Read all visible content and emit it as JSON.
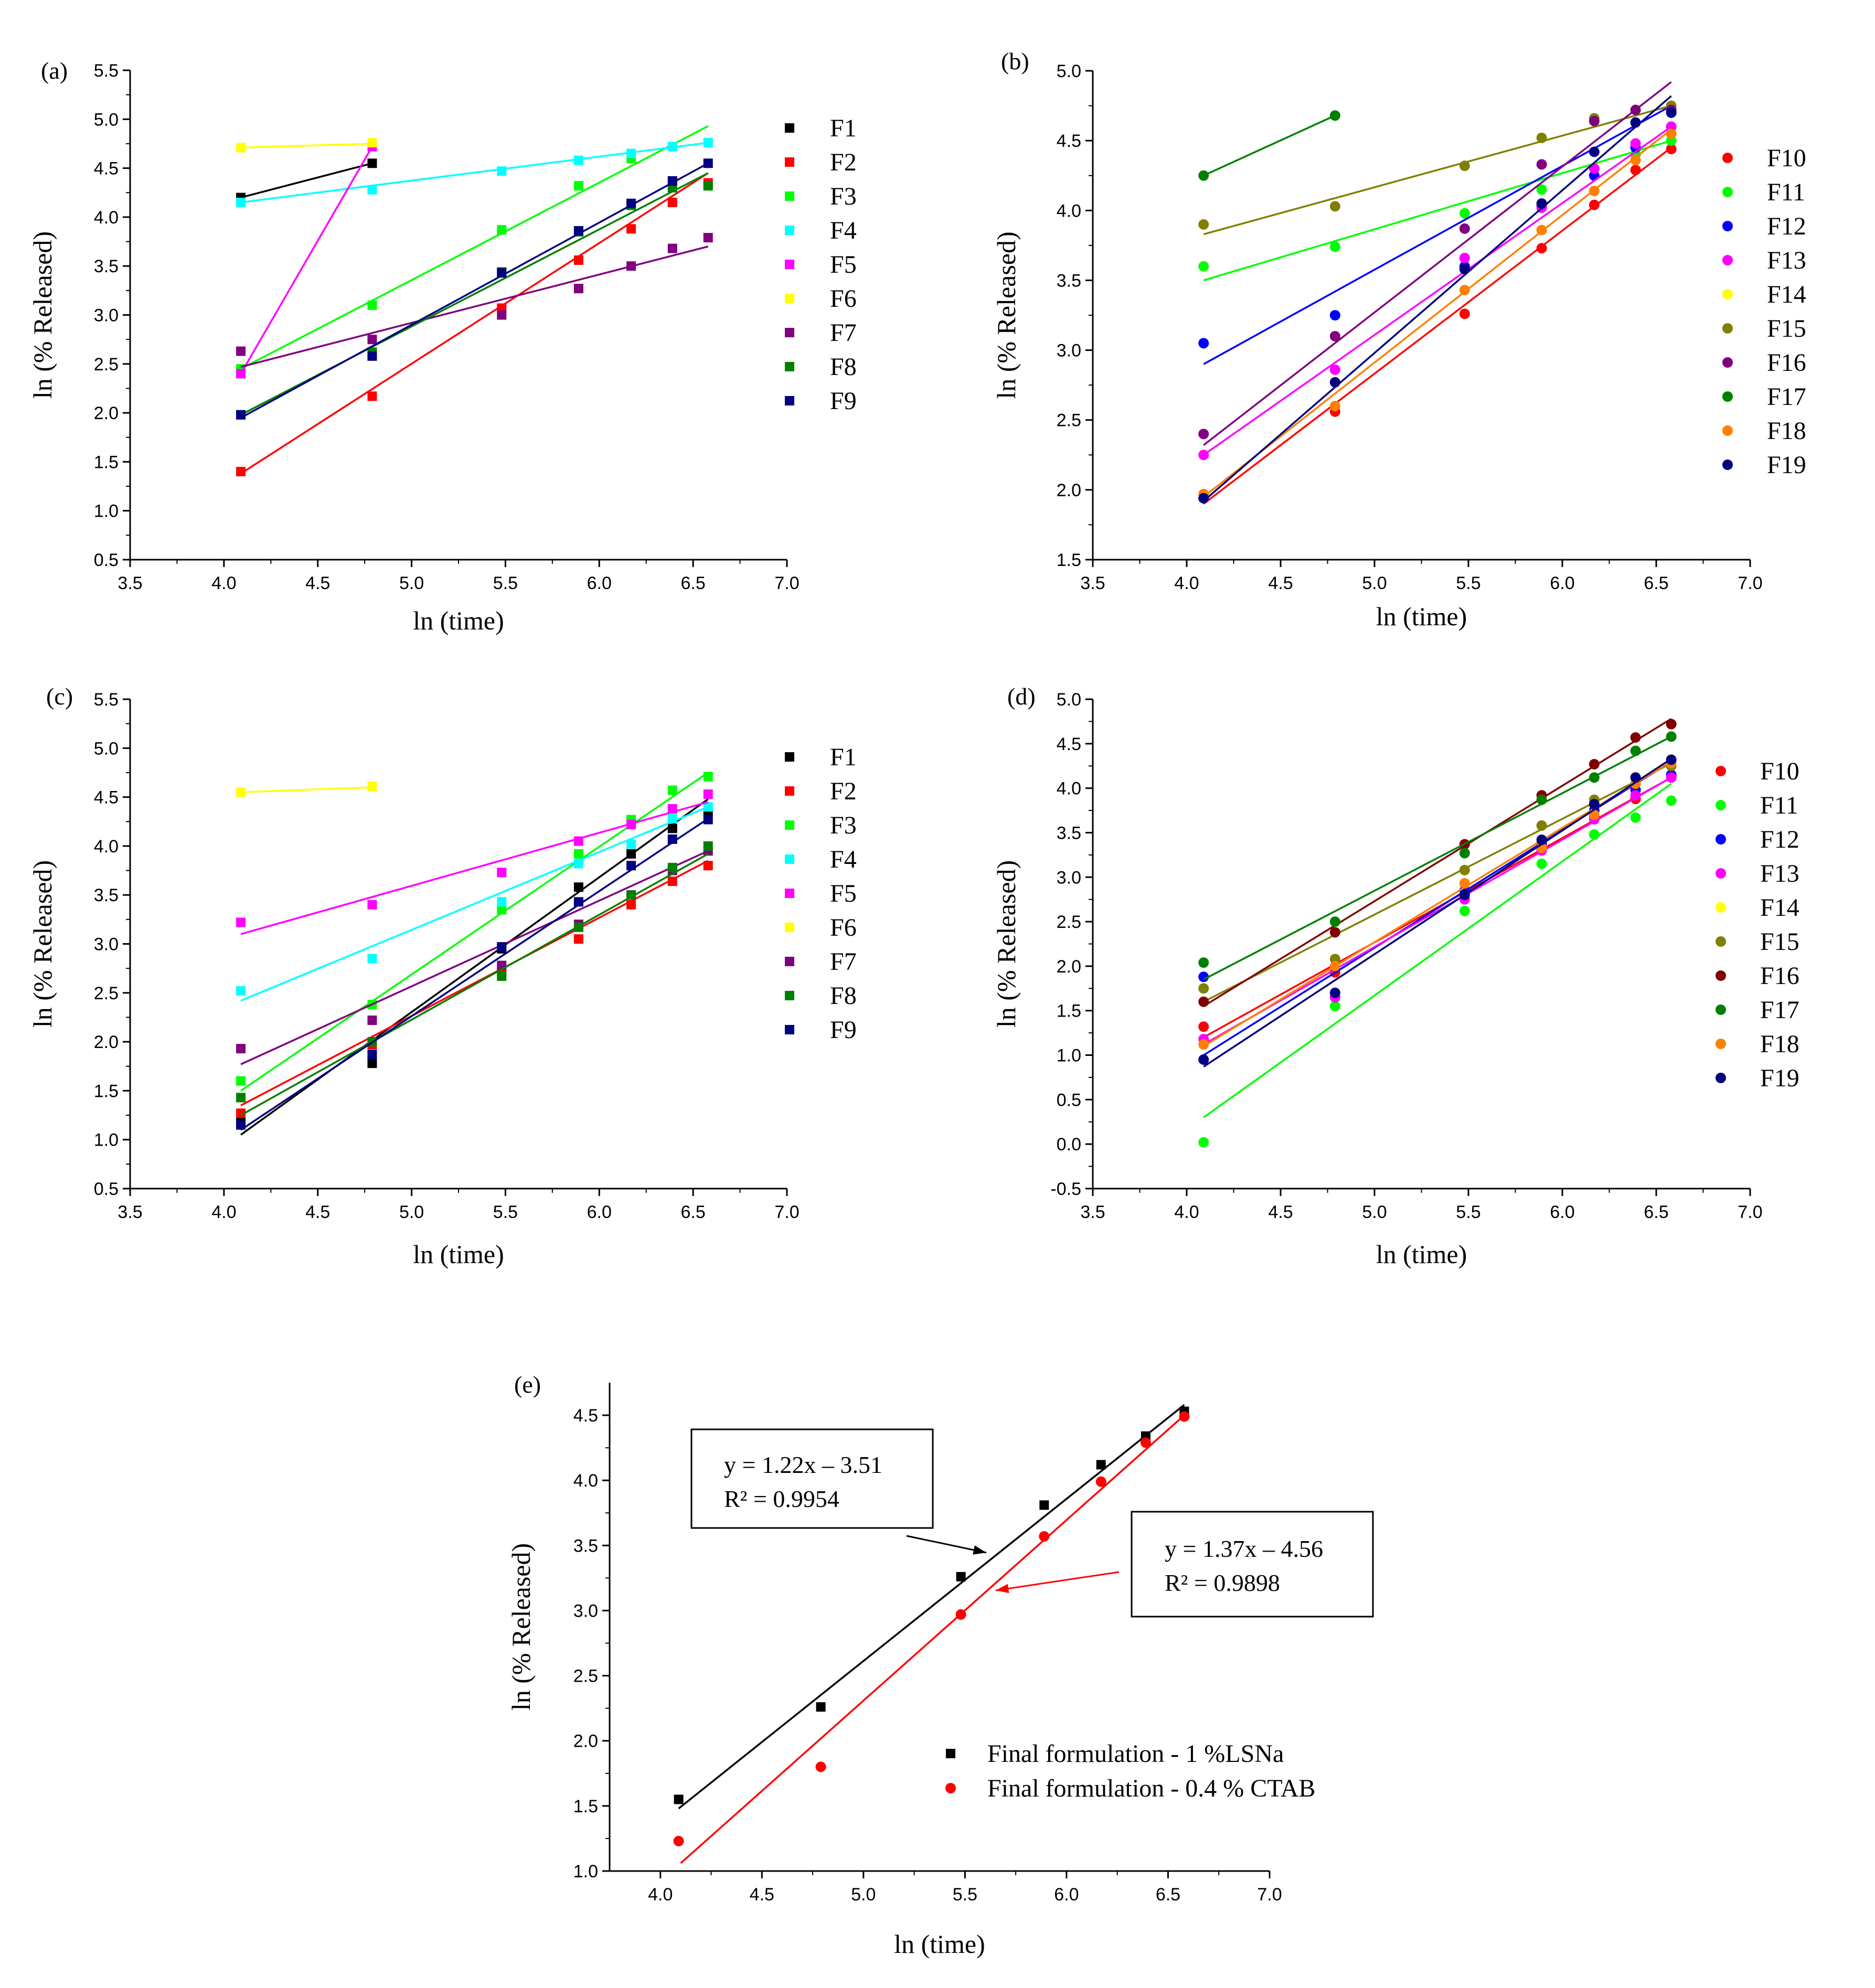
{
  "chart_data": [
    {
      "panel": "(a)",
      "type": "scatter",
      "marker": "square",
      "xlabel": "ln (time)",
      "ylabel": "ln (% Released)",
      "xlim": [
        3.5,
        7.0
      ],
      "ylim": [
        0.5,
        5.5
      ],
      "xticks": [
        "3.5",
        "4.0",
        "4.5",
        "5.0",
        "5.5",
        "6.0",
        "6.5",
        "7.0"
      ],
      "yticks": [
        "0.5",
        "1.0",
        "1.5",
        "2.0",
        "2.5",
        "3.0",
        "3.5",
        "4.0",
        "4.5",
        "5.0",
        "5.5"
      ],
      "legend_position": "right",
      "x": [
        4.09,
        4.79,
        5.48,
        5.89,
        6.17,
        6.39,
        6.58
      ],
      "series": [
        {
          "name": "F1",
          "color": "#000000",
          "values": [
            4.2,
            4.55
          ],
          "fit": [
            [
              4.09,
              4.2
            ],
            [
              4.79,
              4.55
            ]
          ]
        },
        {
          "name": "F2",
          "color": "#ff0000",
          "values": [
            1.4,
            2.17,
            3.07,
            3.56,
            3.88,
            4.15,
            4.35
          ],
          "fit": [
            [
              4.09,
              1.38
            ],
            [
              6.58,
              4.45
            ]
          ]
        },
        {
          "name": "F3",
          "color": "#00ff00",
          "values": [
            2.45,
            3.1,
            3.87,
            4.32,
            4.6,
            4.72,
            4.32
          ],
          "fit": [
            [
              4.09,
              2.45
            ],
            [
              6.58,
              4.93
            ]
          ]
        },
        {
          "name": "F4",
          "color": "#00ffff",
          "values": [
            4.15,
            4.28,
            4.47,
            4.58,
            4.65,
            4.72,
            4.76
          ],
          "fit": [
            [
              4.09,
              4.15
            ],
            [
              6.58,
              4.76
            ]
          ]
        },
        {
          "name": "F5",
          "color": "#ff00ff",
          "values": [
            2.4,
            4.72
          ],
          "fit": [
            [
              4.09,
              2.4
            ],
            [
              4.79,
              4.72
            ]
          ]
        },
        {
          "name": "F6",
          "color": "#ffff00",
          "values": [
            4.71,
            4.76
          ],
          "fit": [
            [
              4.09,
              4.71
            ],
            [
              4.79,
              4.75
            ]
          ]
        },
        {
          "name": "F7",
          "color": "#800080",
          "values": [
            2.63,
            2.75,
            3.0,
            3.27,
            3.5,
            3.68,
            3.79
          ],
          "fit": [
            [
              4.09,
              2.47
            ],
            [
              6.58,
              3.7
            ]
          ]
        },
        {
          "name": "F8",
          "color": "#008000",
          "values": [
            1.98,
            2.62,
            3.44,
            3.85,
            4.12,
            4.3,
            4.32
          ],
          "fit": [
            [
              4.09,
              1.98
            ],
            [
              6.58,
              4.45
            ]
          ]
        },
        {
          "name": "F9",
          "color": "#000080",
          "values": [
            1.98,
            2.58,
            3.43,
            3.86,
            4.14,
            4.37,
            4.55
          ],
          "fit": [
            [
              4.09,
              1.95
            ],
            [
              6.58,
              4.55
            ]
          ]
        }
      ]
    },
    {
      "panel": "(b)",
      "type": "scatter",
      "marker": "circle",
      "xlabel": "ln (time)",
      "ylabel": "ln (% Released)",
      "xlim": [
        3.5,
        7.0
      ],
      "ylim": [
        1.5,
        5.0
      ],
      "xticks": [
        "3.5",
        "4.0",
        "4.5",
        "5.0",
        "5.5",
        "6.0",
        "6.5",
        "7.0"
      ],
      "yticks": [
        "1.5",
        "2.0",
        "2.5",
        "3.0",
        "3.5",
        "4.0",
        "4.5",
        "5.0"
      ],
      "legend_position": "right",
      "x": [
        4.09,
        4.79,
        5.48,
        5.89,
        6.17,
        6.39,
        6.58
      ],
      "series": [
        {
          "name": "F10",
          "color": "#ff0000",
          "values": [
            1.94,
            2.56,
            3.26,
            3.73,
            4.04,
            4.29,
            4.44
          ],
          "fit": [
            [
              4.09,
              1.9
            ],
            [
              6.58,
              4.45
            ]
          ]
        },
        {
          "name": "F11",
          "color": "#00ff00",
          "values": [
            3.6,
            3.74,
            3.98,
            4.15,
            4.3,
            4.4,
            4.5
          ],
          "fit": [
            [
              4.09,
              3.5
            ],
            [
              6.58,
              4.5
            ]
          ]
        },
        {
          "name": "F12",
          "color": "#0000ff",
          "values": [
            3.05,
            3.25,
            3.6,
            4.03,
            4.25,
            4.45,
            4.6
          ],
          "fit": [
            [
              4.09,
              2.9
            ],
            [
              6.58,
              4.75
            ]
          ]
        },
        {
          "name": "F13",
          "color": "#ff00ff",
          "values": [
            2.25,
            2.86,
            3.66,
            4.02,
            4.3,
            4.48,
            4.6
          ],
          "fit": [
            [
              4.09,
              2.25
            ],
            [
              6.58,
              4.6
            ]
          ]
        },
        {
          "name": "F14",
          "color": "#ffff00",
          "values": [],
          "fit": null
        },
        {
          "name": "F15",
          "color": "#808000",
          "values": [
            3.9,
            4.03,
            4.32,
            4.52,
            4.66,
            4.72,
            4.75
          ],
          "fit": [
            [
              4.09,
              3.83
            ],
            [
              6.58,
              4.75
            ]
          ]
        },
        {
          "name": "F16",
          "color": "#800080",
          "values": [
            2.4,
            3.1,
            3.87,
            4.33,
            4.64,
            4.72,
            4.72
          ],
          "fit": [
            [
              4.09,
              2.32
            ],
            [
              6.58,
              4.92
            ]
          ]
        },
        {
          "name": "F17",
          "color": "#008000",
          "values": [
            4.25,
            4.68
          ],
          "fit": [
            [
              4.09,
              4.25
            ],
            [
              4.79,
              4.68
            ]
          ]
        },
        {
          "name": "F18",
          "color": "#ff8000",
          "values": [
            1.97,
            2.6,
            3.43,
            3.86,
            4.14,
            4.36,
            4.55
          ],
          "fit": [
            [
              4.09,
              1.95
            ],
            [
              6.58,
              4.58
            ]
          ]
        },
        {
          "name": "F19",
          "color": "#000080",
          "values": [
            1.94,
            2.77,
            3.58,
            4.05,
            4.42,
            4.63,
            4.7
          ],
          "fit": [
            [
              4.09,
              1.92
            ],
            [
              6.58,
              4.82
            ]
          ]
        }
      ]
    },
    {
      "panel": "(c)",
      "type": "scatter",
      "marker": "square",
      "xlabel": "ln (time)",
      "ylabel": "ln (% Released)",
      "xlim": [
        3.5,
        7.0
      ],
      "ylim": [
        0.5,
        5.5
      ],
      "xticks": [
        "3.5",
        "4.0",
        "4.5",
        "5.0",
        "5.5",
        "6.0",
        "6.5",
        "7.0"
      ],
      "yticks": [
        "0.5",
        "1.0",
        "1.5",
        "2.0",
        "2.5",
        "3.0",
        "3.5",
        "4.0",
        "4.5",
        "5.0",
        "5.5"
      ],
      "legend_position": "right",
      "x": [
        4.09,
        4.79,
        5.48,
        5.89,
        6.17,
        6.39,
        6.58
      ],
      "series": [
        {
          "name": "F1",
          "color": "#000000",
          "values": [
            1.18,
            1.78,
            2.95,
            3.58,
            3.92,
            4.18,
            4.35
          ],
          "fit": [
            [
              4.09,
              1.05
            ],
            [
              6.58,
              4.48
            ]
          ]
        },
        {
          "name": "F2",
          "color": "#ff0000",
          "values": [
            1.27,
            1.97,
            2.72,
            3.05,
            3.4,
            3.64,
            3.8
          ],
          "fit": [
            [
              4.09,
              1.35
            ],
            [
              6.58,
              3.85
            ]
          ]
        },
        {
          "name": "F3",
          "color": "#00ff00",
          "values": [
            1.6,
            2.38,
            3.35,
            3.92,
            4.27,
            4.57,
            4.71
          ],
          "fit": [
            [
              4.09,
              1.5
            ],
            [
              6.58,
              4.75
            ]
          ]
        },
        {
          "name": "F4",
          "color": "#00ffff",
          "values": [
            2.52,
            2.85,
            3.43,
            3.82,
            4.02,
            4.28,
            4.4
          ],
          "fit": [
            [
              4.09,
              2.42
            ],
            [
              6.58,
              4.4
            ]
          ]
        },
        {
          "name": "F5",
          "color": "#ff00ff",
          "values": [
            3.22,
            3.4,
            3.73,
            4.05,
            4.22,
            4.38,
            4.53
          ],
          "fit": [
            [
              4.09,
              3.1
            ],
            [
              6.58,
              4.45
            ]
          ]
        },
        {
          "name": "F6",
          "color": "#ffff00",
          "values": [
            4.55,
            4.61
          ],
          "fit": [
            [
              4.09,
              4.55
            ],
            [
              4.79,
              4.6
            ]
          ]
        },
        {
          "name": "F7",
          "color": "#800080",
          "values": [
            1.93,
            2.22,
            2.78,
            3.2,
            3.5,
            3.75,
            3.95
          ],
          "fit": [
            [
              4.09,
              1.77
            ],
            [
              6.58,
              3.95
            ]
          ]
        },
        {
          "name": "F8",
          "color": "#008000",
          "values": [
            1.43,
            2.0,
            2.67,
            3.17,
            3.5,
            3.78,
            4.0
          ],
          "fit": [
            [
              4.09,
              1.25
            ],
            [
              6.58,
              3.92
            ]
          ]
        },
        {
          "name": "F9",
          "color": "#000080",
          "values": [
            1.15,
            1.87,
            2.97,
            3.43,
            3.8,
            4.07,
            4.27
          ],
          "fit": [
            [
              4.09,
              1.1
            ],
            [
              6.58,
              4.28
            ]
          ]
        }
      ]
    },
    {
      "panel": "(d)",
      "type": "scatter",
      "marker": "circle",
      "xlabel": "ln (time)",
      "ylabel": "ln (% Released)",
      "xlim": [
        3.5,
        7.0
      ],
      "ylim": [
        -0.5,
        5.0
      ],
      "xticks": [
        "3.5",
        "4.0",
        "4.5",
        "5.0",
        "5.5",
        "6.0",
        "6.5",
        "7.0"
      ],
      "yticks": [
        "-0.5",
        "0.0",
        "0.5",
        "1.0",
        "1.5",
        "2.0",
        "2.5",
        "3.0",
        "3.5",
        "4.0",
        "4.5",
        "5.0"
      ],
      "legend_position": "right",
      "x": [
        4.09,
        4.79,
        5.48,
        5.89,
        6.17,
        6.39,
        6.58
      ],
      "series": [
        {
          "name": "F10",
          "color": "#ff0000",
          "values": [
            1.32,
            1.93,
            2.93,
            3.32,
            3.68,
            3.88,
            4.12
          ],
          "fit": [
            [
              4.09,
              1.2
            ],
            [
              6.58,
              4.12
            ]
          ]
        },
        {
          "name": "F11",
          "color": "#00ff00",
          "values": [
            0.02,
            1.55,
            2.62,
            3.15,
            3.48,
            3.67,
            3.86
          ],
          "fit": [
            [
              4.09,
              0.3
            ],
            [
              6.58,
              4.05
            ]
          ]
        },
        {
          "name": "F12",
          "color": "#0000ff",
          "values": [
            1.88,
            1.65,
            2.85,
            3.38,
            3.75,
            3.98,
            4.15
          ],
          "fit": [
            [
              4.09,
              1.0
            ],
            [
              6.58,
              4.3
            ]
          ]
        },
        {
          "name": "F13",
          "color": "#ff00ff",
          "values": [
            1.18,
            1.65,
            2.75,
            3.3,
            3.65,
            3.92,
            4.12
          ],
          "fit": [
            [
              4.09,
              1.12
            ],
            [
              6.58,
              4.12
            ]
          ]
        },
        {
          "name": "F14",
          "color": "#ffff00",
          "values": [],
          "fit": null
        },
        {
          "name": "F15",
          "color": "#808000",
          "values": [
            1.75,
            2.08,
            3.08,
            3.58,
            3.87,
            4.05,
            4.25
          ],
          "fit": [
            [
              4.09,
              1.6
            ],
            [
              6.58,
              4.28
            ]
          ]
        },
        {
          "name": "F16",
          "color": "#800000",
          "values": [
            1.6,
            2.38,
            3.37,
            3.92,
            4.27,
            4.57,
            4.72
          ],
          "fit": [
            [
              4.09,
              1.55
            ],
            [
              6.58,
              4.78
            ]
          ]
        },
        {
          "name": "F17",
          "color": "#008000",
          "values": [
            2.04,
            2.5,
            3.27,
            3.87,
            4.12,
            4.42,
            4.58
          ],
          "fit": [
            [
              4.09,
              1.85
            ],
            [
              6.58,
              4.58
            ]
          ]
        },
        {
          "name": "F18",
          "color": "#ff8000",
          "values": [
            1.12,
            2.0,
            2.93,
            3.33,
            3.7,
            4.05,
            4.28
          ],
          "fit": [
            [
              4.09,
              1.1
            ],
            [
              6.58,
              4.3
            ]
          ]
        },
        {
          "name": "F19",
          "color": "#000080",
          "values": [
            0.95,
            1.7,
            2.8,
            3.42,
            3.82,
            4.12,
            4.32
          ],
          "fit": [
            [
              4.09,
              0.87
            ],
            [
              6.58,
              4.33
            ]
          ]
        }
      ]
    },
    {
      "panel": "(e)",
      "type": "scatter",
      "xlabel": "ln (time)",
      "ylabel": "ln (% Released)",
      "xlim": [
        3.75,
        7.0
      ],
      "ylim": [
        1.0,
        4.75
      ],
      "xticks": [
        "4.0",
        "4.5",
        "5.0",
        "5.5",
        "6.0",
        "6.5",
        "7.0"
      ],
      "yticks": [
        "1.0",
        "1.5",
        "2.0",
        "2.5",
        "3.0",
        "3.5",
        "4.0",
        "4.5"
      ],
      "legend_position": "bottom-right",
      "x": [
        4.09,
        4.79,
        5.48,
        5.89,
        6.17,
        6.39,
        6.58
      ],
      "series": [
        {
          "name": "Final formulation - 1 %LSNa",
          "color": "#000000",
          "marker": "square",
          "values": [
            1.55,
            2.26,
            3.26,
            3.81,
            4.12,
            4.34,
            4.53
          ],
          "fit": [
            [
              4.09,
              1.48
            ],
            [
              6.58,
              4.58
            ]
          ]
        },
        {
          "name": "Final formulation - 0.4 % CTAB",
          "color": "#ff0000",
          "marker": "circle",
          "values": [
            1.23,
            1.8,
            2.97,
            3.57,
            3.99,
            4.29,
            4.49
          ],
          "fit": [
            [
              4.1,
              1.06
            ],
            [
              6.58,
              4.5
            ]
          ]
        }
      ],
      "annotations": [
        {
          "line1": "y = 1.22x – 3.51",
          "line2": "R² = 0.9954"
        },
        {
          "line1": "y = 1.37x – 4.56",
          "line2": "R² = 0.9898"
        }
      ]
    }
  ]
}
